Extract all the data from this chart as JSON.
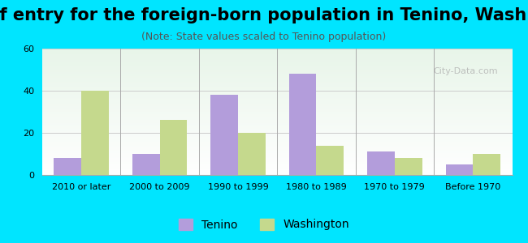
{
  "title": "Year of entry for the foreign-born population in Tenino, Washington",
  "subtitle": "(Note: State values scaled to Tenino population)",
  "categories": [
    "2010 or later",
    "2000 to 2009",
    "1990 to 1999",
    "1980 to 1989",
    "1970 to 1979",
    "Before 1970"
  ],
  "tenino_values": [
    8,
    10,
    38,
    48,
    11,
    5
  ],
  "washington_values": [
    40,
    26,
    20,
    14,
    8,
    10
  ],
  "tenino_color": "#b39ddb",
  "washington_color": "#c5d98d",
  "ylim": [
    0,
    60
  ],
  "yticks": [
    0,
    20,
    40,
    60
  ],
  "background_outer": "#00e5ff",
  "bar_width": 0.35,
  "legend_tenino": "Tenino",
  "legend_washington": "Washington",
  "title_fontsize": 15,
  "subtitle_fontsize": 9,
  "tick_fontsize": 8,
  "legend_fontsize": 10
}
